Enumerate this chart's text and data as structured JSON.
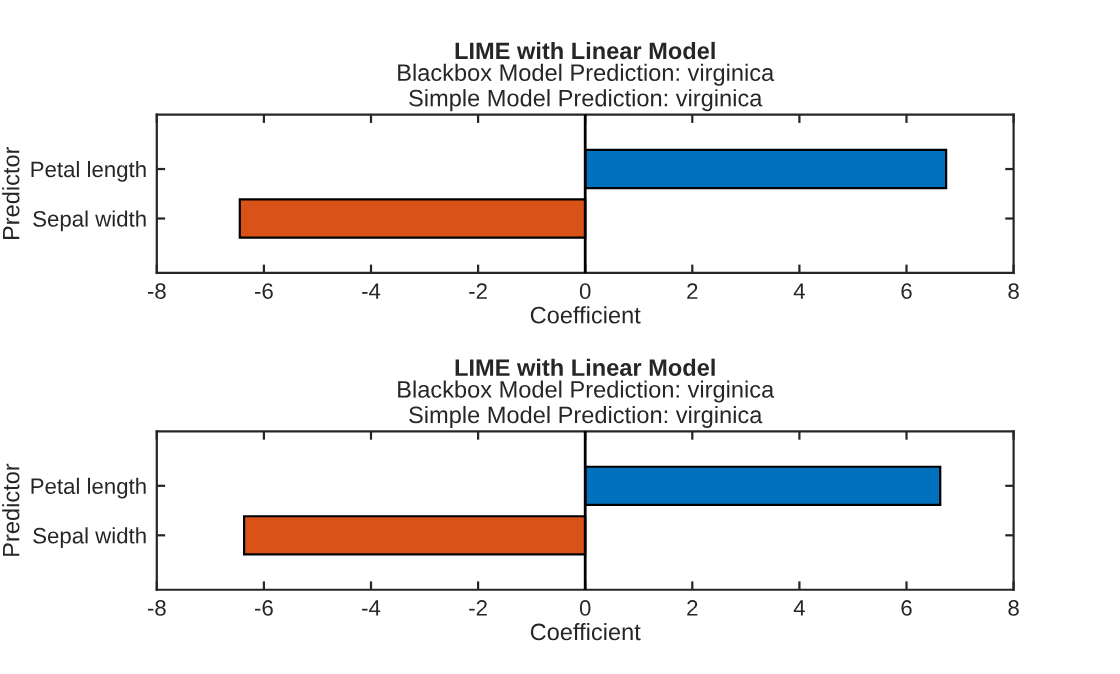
{
  "chart_data": [
    {
      "type": "bar",
      "orientation": "horizontal",
      "title": "LIME with Linear Model",
      "subtitle": "Blackbox Model Prediction: virginica\nSimple Model Prediction: virginica",
      "xlabel": "Coefficient",
      "ylabel": "Predictor",
      "categories": [
        "Petal length",
        "Sepal width"
      ],
      "values": [
        6.74,
        -6.45
      ],
      "colors": [
        "#0072bd",
        "#d95319"
      ],
      "xlim": [
        -8,
        8
      ],
      "xticks": [
        -8,
        -6,
        -4,
        -2,
        0,
        2,
        4,
        6,
        8
      ],
      "ref_lines": [
        {
          "axis": "x",
          "value": 0,
          "color": "#000000"
        }
      ],
      "grid": false,
      "legend": false
    },
    {
      "type": "bar",
      "orientation": "horizontal",
      "title": "LIME with Linear Model",
      "subtitle": "Blackbox Model Prediction: virginica\nSimple Model Prediction: virginica",
      "xlabel": "Coefficient",
      "ylabel": "Predictor",
      "categories": [
        "Petal length",
        "Sepal width"
      ],
      "values": [
        6.63,
        -6.37
      ],
      "colors": [
        "#0072bd",
        "#d95319"
      ],
      "xlim": [
        -8,
        8
      ],
      "xticks": [
        -8,
        -6,
        -4,
        -2,
        0,
        2,
        4,
        6,
        8
      ],
      "ref_lines": [
        {
          "axis": "x",
          "value": 0,
          "color": "#000000"
        }
      ],
      "grid": false,
      "legend": false
    }
  ]
}
